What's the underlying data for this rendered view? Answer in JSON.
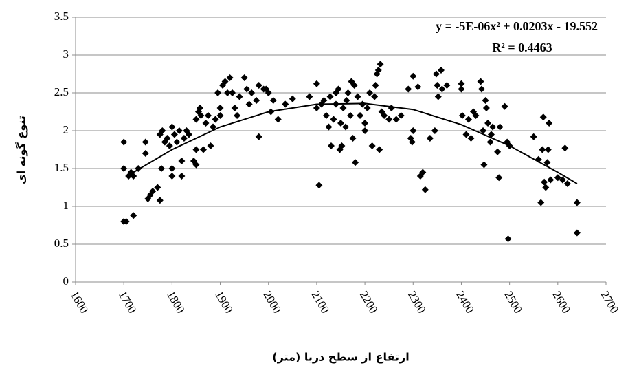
{
  "chart_data": {
    "type": "scatter",
    "equation": "y = -5E-06x² + 0.0203x - 19.552",
    "r_squared": "R² = 0.4463",
    "xlabel": "ارتفاع از سطح دریا (متر)",
    "ylabel": "تنوع گونه ای",
    "color": "#000000",
    "grid": true,
    "xlim": [
      1600,
      2700
    ],
    "xticks": [
      1600,
      1700,
      1800,
      1900,
      2000,
      2100,
      2200,
      2300,
      2400,
      2500,
      2600,
      2700
    ],
    "ylim": [
      0,
      3.5
    ],
    "yticks": [
      0,
      0.5,
      1,
      1.5,
      2,
      2.5,
      3,
      3.5
    ],
    "x": [
      1700,
      1700,
      1700,
      1705,
      1710,
      1715,
      1720,
      1720,
      1730,
      1745,
      1745,
      1750,
      1755,
      1760,
      1770,
      1775,
      1775,
      1778,
      1780,
      1785,
      1790,
      1795,
      1800,
      1800,
      1800,
      1805,
      1810,
      1815,
      1820,
      1820,
      1825,
      1830,
      1835,
      1845,
      1850,
      1850,
      1850,
      1855,
      1858,
      1860,
      1865,
      1870,
      1875,
      1880,
      1885,
      1890,
      1895,
      1900,
      1900,
      1905,
      1910,
      1915,
      1920,
      1925,
      1930,
      1935,
      1940,
      1950,
      1955,
      1960,
      1965,
      1975,
      1980,
      1980,
      1990,
      1995,
      2000,
      2005,
      2010,
      2020,
      2035,
      2050,
      2085,
      2100,
      2100,
      2105,
      2110,
      2115,
      2120,
      2125,
      2128,
      2130,
      2135,
      2140,
      2140,
      2145,
      2148,
      2150,
      2152,
      2155,
      2160,
      2162,
      2165,
      2170,
      2172,
      2175,
      2178,
      2180,
      2185,
      2190,
      2195,
      2200,
      2200,
      2205,
      2210,
      2215,
      2220,
      2222,
      2225,
      2228,
      2230,
      2232,
      2235,
      2240,
      2250,
      2255,
      2265,
      2275,
      2290,
      2295,
      2298,
      2300,
      2300,
      2310,
      2315,
      2320,
      2325,
      2335,
      2345,
      2348,
      2350,
      2352,
      2358,
      2360,
      2370,
      2400,
      2400,
      2402,
      2410,
      2415,
      2420,
      2425,
      2430,
      2440,
      2442,
      2445,
      2447,
      2450,
      2452,
      2455,
      2460,
      2462,
      2465,
      2475,
      2478,
      2480,
      2490,
      2495,
      2497,
      2500,
      2550,
      2560,
      2565,
      2568,
      2570,
      2572,
      2575,
      2578,
      2580,
      2582,
      2585,
      2600,
      2610,
      2615,
      2620,
      2640,
      2640
    ],
    "values": [
      1.85,
      1.5,
      0.8,
      0.8,
      1.4,
      1.45,
      0.88,
      1.4,
      1.5,
      1.7,
      1.85,
      1.1,
      1.15,
      1.2,
      1.25,
      1.08,
      1.95,
      1.5,
      2.0,
      1.85,
      1.9,
      1.8,
      2.05,
      1.5,
      1.4,
      1.95,
      1.85,
      2.0,
      1.6,
      1.4,
      1.9,
      2.0,
      1.95,
      1.6,
      1.55,
      1.75,
      2.15,
      2.25,
      2.3,
      2.2,
      1.75,
      2.1,
      2.2,
      1.8,
      2.05,
      2.15,
      2.5,
      2.2,
      2.3,
      2.6,
      2.65,
      2.5,
      2.7,
      2.5,
      2.3,
      2.2,
      2.45,
      2.7,
      2.55,
      2.35,
      2.5,
      2.4,
      1.92,
      2.6,
      2.55,
      2.55,
      2.5,
      2.25,
      2.4,
      2.15,
      2.35,
      2.42,
      2.45,
      2.3,
      2.62,
      1.28,
      2.35,
      2.4,
      2.2,
      2.05,
      2.45,
      1.8,
      2.15,
      2.35,
      2.5,
      2.55,
      1.75,
      2.1,
      1.8,
      2.3,
      2.05,
      2.4,
      2.5,
      2.2,
      2.65,
      1.9,
      2.6,
      1.58,
      2.45,
      2.2,
      2.35,
      2.0,
      2.1,
      2.3,
      2.5,
      1.8,
      2.45,
      2.6,
      2.75,
      2.8,
      1.75,
      2.88,
      2.25,
      2.2,
      2.15,
      2.3,
      2.15,
      2.2,
      2.55,
      1.9,
      1.85,
      2.72,
      2.0,
      2.58,
      1.4,
      1.45,
      1.22,
      1.9,
      2.0,
      2.75,
      2.6,
      2.45,
      2.8,
      2.55,
      2.6,
      2.62,
      2.55,
      2.2,
      1.95,
      2.15,
      1.9,
      2.25,
      2.2,
      2.65,
      2.55,
      2.0,
      1.55,
      2.4,
      2.3,
      2.1,
      1.85,
      1.95,
      2.05,
      1.72,
      1.38,
      2.05,
      2.32,
      1.85,
      0.57,
      1.8,
      1.92,
      1.62,
      1.05,
      1.75,
      2.18,
      1.32,
      1.25,
      1.58,
      1.75,
      2.1,
      1.35,
      1.38,
      1.35,
      1.77,
      1.3,
      1.05,
      0.65
    ],
    "trendline": {
      "x": [
        1720,
        1800,
        1900,
        2000,
        2100,
        2200,
        2300,
        2400,
        2500,
        2600,
        2640
      ],
      "values": [
        1.45,
        1.75,
        2.05,
        2.25,
        2.35,
        2.36,
        2.28,
        2.08,
        1.8,
        1.45,
        1.3
      ]
    }
  }
}
